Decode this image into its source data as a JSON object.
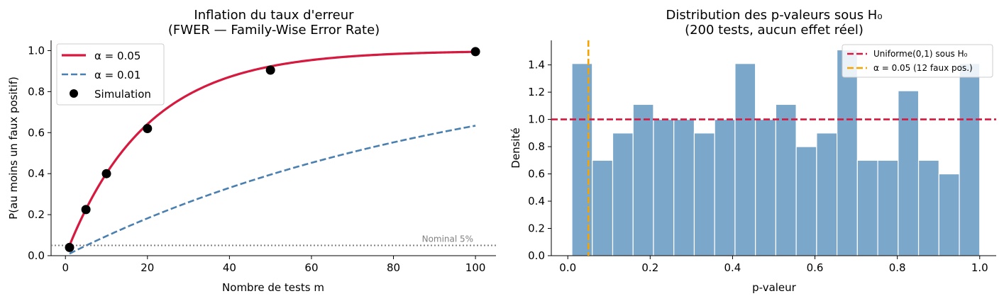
{
  "chart_data": [
    {
      "type": "line",
      "title": "Inflation du taux d'erreur",
      "subtitle": "(FWER — Family-Wise Error Rate)",
      "xlabel": "Nombre de tests m",
      "ylabel": "P(au moins un faux positif)",
      "xlim": [
        -3.5,
        105
      ],
      "ylim": [
        0,
        1.05
      ],
      "xticks": [
        0,
        20,
        40,
        60,
        80,
        100
      ],
      "xtick_labels": [
        "0",
        "20",
        "40",
        "60",
        "80",
        "100"
      ],
      "yticks": [
        0,
        0.2,
        0.4,
        0.6,
        0.8,
        1.0
      ],
      "ytick_labels": [
        "0.0",
        "0.2",
        "0.4",
        "0.6",
        "0.8",
        "1.0"
      ],
      "grid": false,
      "legend_position": "top-left",
      "series": [
        {
          "name": "α = 0.05",
          "kind": "curve",
          "formula": "1-(1-alpha)^m",
          "alpha": 0.05,
          "x_range": [
            1,
            100
          ],
          "color": "#d6193f",
          "style": "solid"
        },
        {
          "name": "α = 0.01",
          "kind": "curve",
          "formula": "1-(1-alpha)^m",
          "alpha": 0.01,
          "x_range": [
            1,
            100
          ],
          "color": "#4a80b0",
          "style": "dashed"
        },
        {
          "name": "Simulation",
          "kind": "scatter",
          "x": [
            1,
            5,
            10,
            20,
            50,
            100
          ],
          "y": [
            0.04,
            0.225,
            0.4,
            0.62,
            0.905,
            0.995
          ],
          "color": "#000000"
        }
      ],
      "reference_line": {
        "y": 0.05,
        "color": "#808080",
        "style": "dotted",
        "label": "Nominal 5%"
      }
    },
    {
      "type": "bar",
      "title": "Distribution des p-valeurs sous H₀",
      "subtitle": "(200 tests, aucun effet réel)",
      "xlabel": "p-valeur",
      "ylabel": "Densité",
      "xlim": [
        -0.04,
        1.04
      ],
      "ylim": [
        0,
        1.58
      ],
      "xticks": [
        0,
        0.2,
        0.4,
        0.6,
        0.8,
        1.0
      ],
      "xtick_labels": [
        "0.0",
        "0.2",
        "0.4",
        "0.6",
        "0.8",
        "1.0"
      ],
      "yticks": [
        0,
        0.2,
        0.4,
        0.6,
        0.8,
        1.0,
        1.2,
        1.4
      ],
      "ytick_labels": [
        "0.0",
        "0.2",
        "0.4",
        "0.6",
        "0.8",
        "1.0",
        "1.2",
        "1.4"
      ],
      "grid": false,
      "legend_position": "top-right",
      "bins": {
        "start": 0.01,
        "end": 1.0,
        "count": 20
      },
      "values": [
        1.41,
        0.7,
        0.9,
        1.11,
        1.0,
        1.0,
        0.9,
        1.0,
        1.41,
        1.0,
        1.11,
        0.8,
        0.9,
        1.51,
        0.7,
        0.7,
        1.21,
        0.7,
        0.6,
        1.41
      ],
      "bar_color": "#7ba7cb",
      "hlines": [
        {
          "y": 1.0,
          "name": "Uniforme(0,1) sous H₀",
          "color": "#d6193f",
          "style": "dashed"
        }
      ],
      "vlines": [
        {
          "x": 0.05,
          "name": "α = 0.05 (12 faux pos.)",
          "color": "#f5a300",
          "style": "dashed"
        }
      ]
    }
  ]
}
